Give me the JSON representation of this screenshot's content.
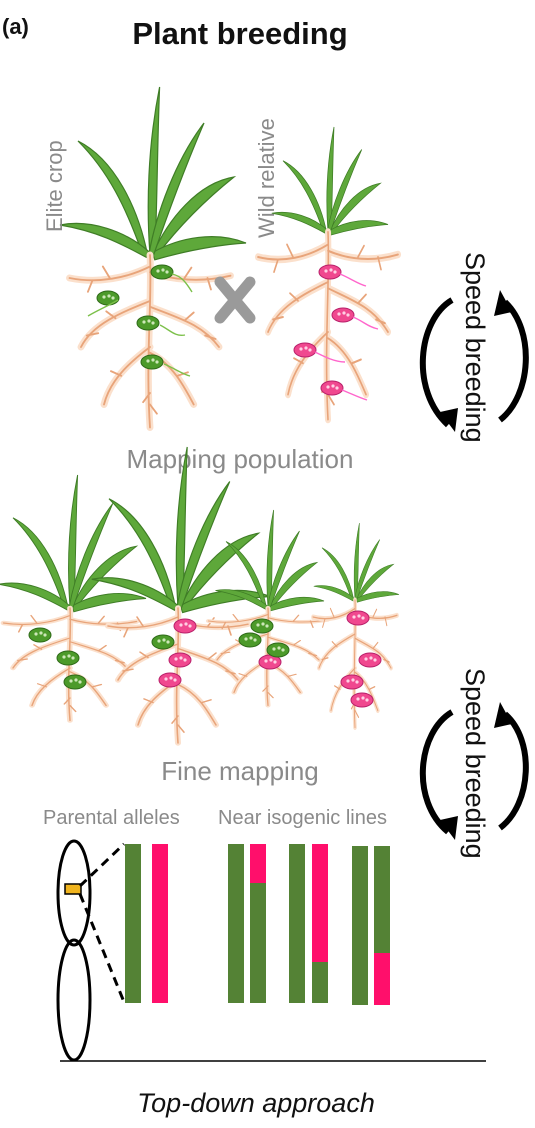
{
  "panel_label": "(a)",
  "title": "Plant breeding",
  "plants": {
    "elite_label": "Elite crop",
    "wild_label": "Wild relative"
  },
  "cross_symbol": "X",
  "speed_breeding_top": "Speed breeding",
  "speed_breeding_bottom": "Speed breeding",
  "mapping_population": "Mapping population",
  "fine_mapping": "Fine mapping",
  "parental_alleles": "Parental alleles",
  "near_isogenic_lines": "Near isogenic lines",
  "footer": "Top-down approach",
  "colors": {
    "leaf": "#5ea83a",
    "leaf_dark": "#3f7d26",
    "root": "#e8a47a",
    "root_glow": "#fbe0cc",
    "nodule_green": "#4c9a2a",
    "nodule_pink": "#f0488f",
    "allele_green": "#548235",
    "allele_magenta": "#ff0f6b",
    "marker_orange": "#f0b41e",
    "cross_gray": "#9a9a9a"
  }
}
